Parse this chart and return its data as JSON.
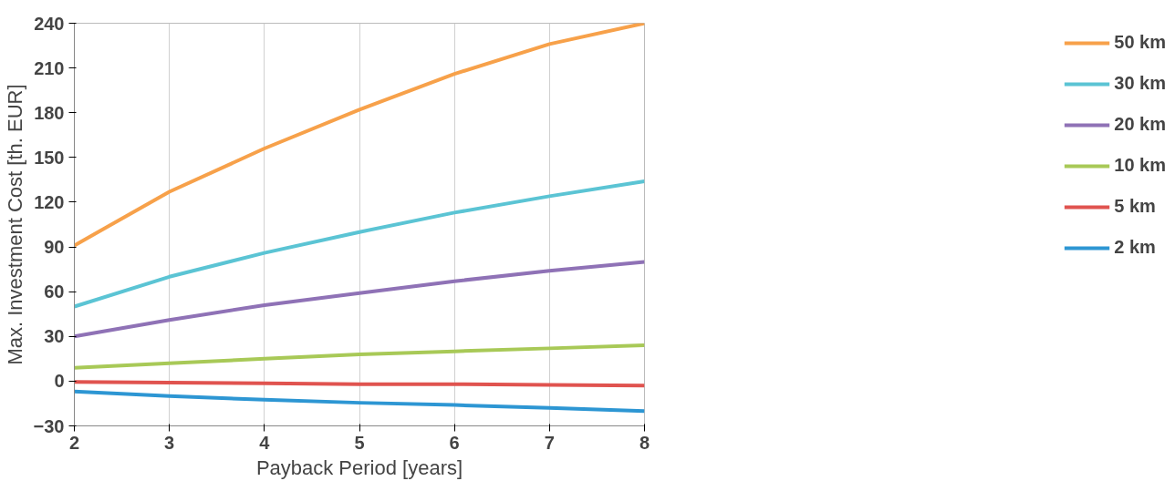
{
  "chart_data": {
    "type": "line",
    "xlabel": "Payback Period [years]",
    "ylabel": "Max. Investment Cost [th. EUR]",
    "x": [
      2,
      3,
      4,
      5,
      6,
      7,
      8
    ],
    "series": [
      {
        "name": "50 km",
        "color": "#f7a14a",
        "values": [
          91,
          127,
          156,
          182,
          206,
          226,
          240
        ]
      },
      {
        "name": "30 km",
        "color": "#5bc4d4",
        "values": [
          50,
          70,
          86,
          100,
          113,
          124,
          134
        ]
      },
      {
        "name": "20 km",
        "color": "#8f72b6",
        "values": [
          30,
          41,
          51,
          59,
          67,
          74,
          80
        ]
      },
      {
        "name": "10 km",
        "color": "#a8c957",
        "values": [
          9,
          12,
          15,
          18,
          20,
          22,
          24
        ]
      },
      {
        "name": "5 km",
        "color": "#e0534f",
        "values": [
          -0.5,
          -1,
          -1.5,
          -2,
          -2,
          -2.5,
          -3
        ]
      },
      {
        "name": "2 km",
        "color": "#2d96d3",
        "values": [
          -7,
          -10,
          -12.5,
          -14.5,
          -16,
          -18,
          -20
        ]
      }
    ],
    "xlim": [
      2,
      8
    ],
    "xticks": [
      2,
      3,
      4,
      5,
      6,
      7,
      8
    ],
    "ylim": [
      -30,
      240
    ],
    "yticks": [
      -30,
      0,
      30,
      60,
      90,
      120,
      150,
      180,
      210,
      240
    ],
    "grid": "x",
    "legend": "right",
    "marker": "none",
    "line_style": "solid"
  }
}
